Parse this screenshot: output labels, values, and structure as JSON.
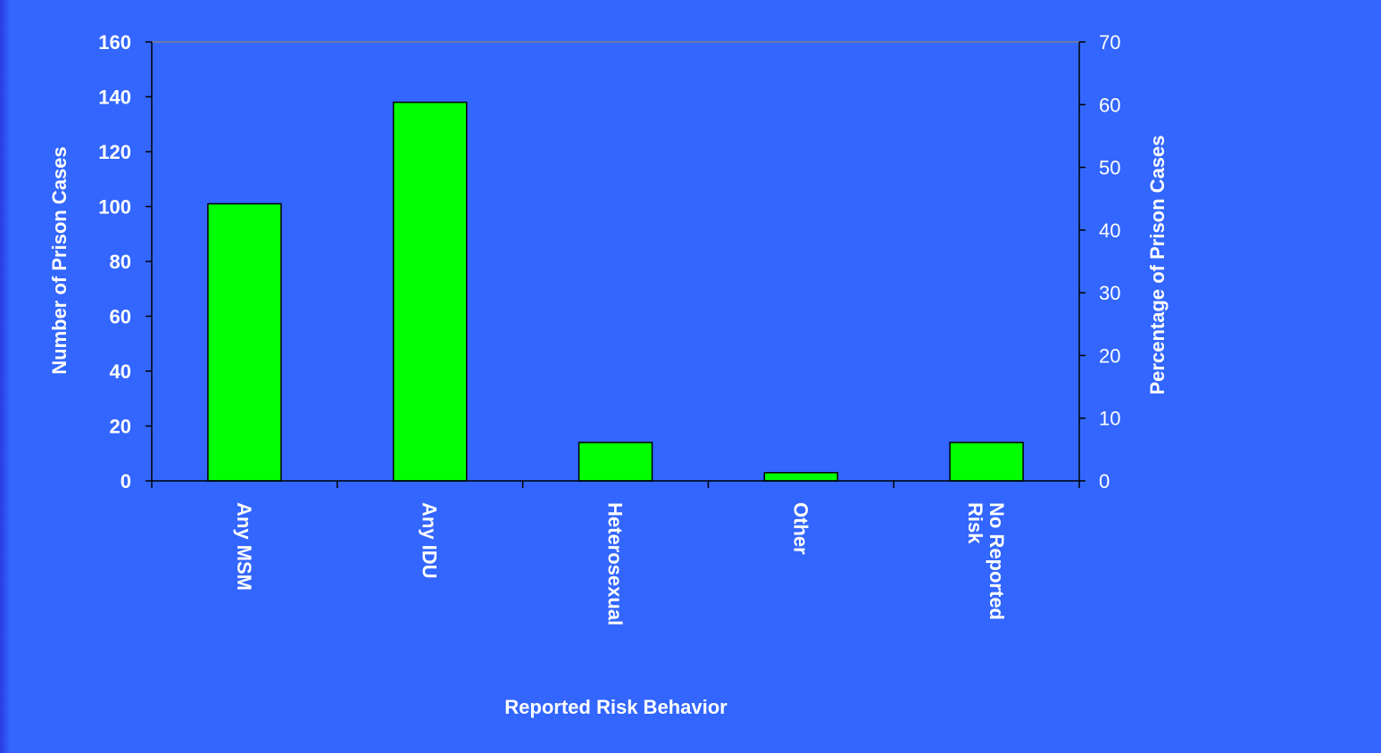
{
  "colors": {
    "background": "#3366ff",
    "bar_fill": "#00ff00",
    "bar_stroke": "#000000",
    "text": "#ffffff",
    "gridline": "#808080"
  },
  "chart_data": {
    "type": "bar",
    "title": "",
    "categories": [
      [
        "Any MSM"
      ],
      [
        "Any IDU"
      ],
      [
        "Heterosexual"
      ],
      [
        "Other"
      ],
      [
        "No Reported",
        "Risk"
      ]
    ],
    "values": [
      101,
      138,
      14,
      3,
      14
    ],
    "xlabel": "Reported Risk Behavior",
    "ylabel": "Number of Prison Cases",
    "ylim": [
      0,
      160
    ],
    "yticks": [
      "0",
      "20",
      "40",
      "60",
      "80",
      "100",
      "120",
      "140",
      "160"
    ],
    "y2label": "Percentage of Prison Cases",
    "y2lim": [
      0,
      70
    ],
    "y2ticks": [
      "0",
      "10",
      "20",
      "30",
      "40",
      "50",
      "60",
      "70"
    ],
    "category_label_rotation": "vertical",
    "legend": "none",
    "grid": "top gridline only"
  }
}
